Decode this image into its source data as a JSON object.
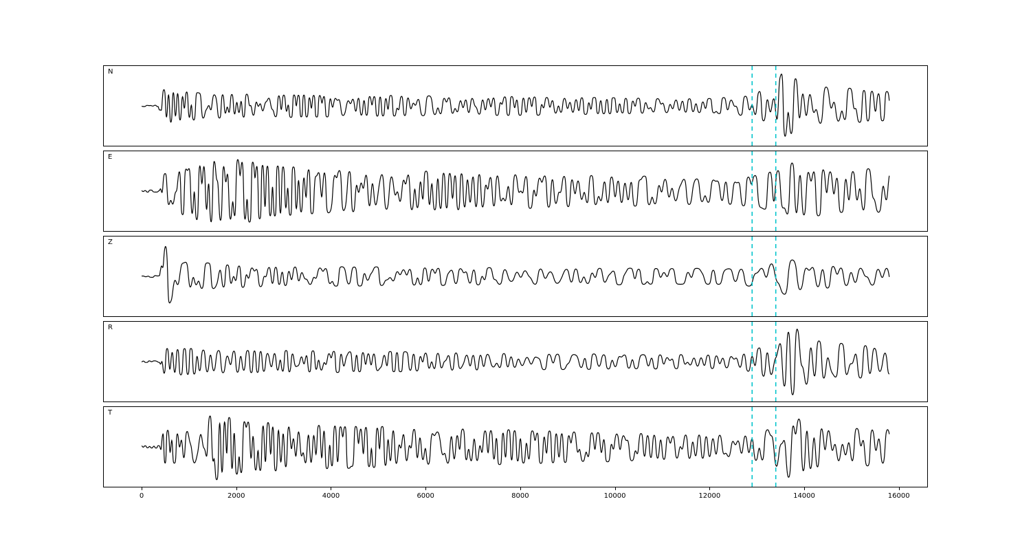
{
  "figure": {
    "background": "#ffffff",
    "panel_border_color": "#000000",
    "trace_color": "#000000",
    "marker_color": "#00c4cc"
  },
  "chart_data": {
    "type": "line",
    "title": "",
    "xlabel": "",
    "ylabel": "",
    "xlim": [
      -800,
      16600
    ],
    "x_start": 0,
    "x_end": 15800,
    "xticks": [
      0,
      2000,
      4000,
      6000,
      8000,
      10000,
      12000,
      14000,
      16000
    ],
    "xtick_labels": [
      "0",
      "2000",
      "4000",
      "6000",
      "8000",
      "10000",
      "12000",
      "14000",
      "16000"
    ],
    "grid": false,
    "legend": false,
    "vlines": [
      {
        "x": 12900,
        "style": "dashed",
        "color": "#00c4cc"
      },
      {
        "x": 13400,
        "style": "dashed",
        "color": "#00c4cc"
      }
    ],
    "panels": [
      {
        "label": "N",
        "seed": 101,
        "gain": 54,
        "envelope": [
          [
            0,
            0.02
          ],
          [
            350,
            0.02
          ],
          [
            430,
            0.45
          ],
          [
            600,
            0.5
          ],
          [
            900,
            0.42
          ],
          [
            1500,
            0.35
          ],
          [
            2500,
            0.32
          ],
          [
            4000,
            0.3
          ],
          [
            6000,
            0.28
          ],
          [
            8000,
            0.26
          ],
          [
            10000,
            0.22
          ],
          [
            12000,
            0.2
          ],
          [
            12800,
            0.28
          ],
          [
            13100,
            0.45
          ],
          [
            13350,
            0.4
          ],
          [
            13550,
            1.0
          ],
          [
            13750,
            0.85
          ],
          [
            14200,
            0.6
          ],
          [
            14800,
            0.5
          ],
          [
            15300,
            0.45
          ],
          [
            15800,
            0.4
          ]
        ]
      },
      {
        "label": "E",
        "seed": 202,
        "gain": 52,
        "envelope": [
          [
            0,
            0.03
          ],
          [
            380,
            0.03
          ],
          [
            450,
            0.5
          ],
          [
            700,
            0.6
          ],
          [
            1000,
            0.75
          ],
          [
            1400,
            1.0
          ],
          [
            1700,
            0.9
          ],
          [
            2100,
            0.95
          ],
          [
            2600,
            0.75
          ],
          [
            3500,
            0.65
          ],
          [
            5000,
            0.6
          ],
          [
            6500,
            0.55
          ],
          [
            8000,
            0.5
          ],
          [
            9500,
            0.45
          ],
          [
            11000,
            0.42
          ],
          [
            12300,
            0.38
          ],
          [
            12900,
            0.45
          ],
          [
            13400,
            0.6
          ],
          [
            13700,
            0.85
          ],
          [
            14100,
            0.75
          ],
          [
            14700,
            0.6
          ],
          [
            15300,
            0.65
          ],
          [
            15800,
            0.6
          ]
        ]
      },
      {
        "label": "Z",
        "seed": 303,
        "gain": 54,
        "envelope": [
          [
            0,
            0.02
          ],
          [
            380,
            0.03
          ],
          [
            470,
            1.0
          ],
          [
            600,
            0.75
          ],
          [
            800,
            0.5
          ],
          [
            1100,
            0.4
          ],
          [
            1800,
            0.32
          ],
          [
            3000,
            0.28
          ],
          [
            5000,
            0.26
          ],
          [
            7000,
            0.24
          ],
          [
            9000,
            0.24
          ],
          [
            11000,
            0.22
          ],
          [
            12500,
            0.22
          ],
          [
            13000,
            0.3
          ],
          [
            13400,
            0.45
          ],
          [
            13650,
            0.55
          ],
          [
            14000,
            0.4
          ],
          [
            14800,
            0.3
          ],
          [
            15500,
            0.28
          ],
          [
            15800,
            0.3
          ]
        ]
      },
      {
        "label": "R",
        "seed": 404,
        "gain": 54,
        "envelope": [
          [
            0,
            0.02
          ],
          [
            380,
            0.03
          ],
          [
            450,
            0.4
          ],
          [
            700,
            0.38
          ],
          [
            1200,
            0.35
          ],
          [
            2000,
            0.32
          ],
          [
            3500,
            0.3
          ],
          [
            5000,
            0.28
          ],
          [
            7000,
            0.25
          ],
          [
            9000,
            0.22
          ],
          [
            11000,
            0.2
          ],
          [
            12400,
            0.2
          ],
          [
            12900,
            0.3
          ],
          [
            13150,
            0.45
          ],
          [
            13400,
            0.5
          ],
          [
            13650,
            0.95
          ],
          [
            13850,
            1.0
          ],
          [
            14200,
            0.6
          ],
          [
            14800,
            0.5
          ],
          [
            15400,
            0.45
          ],
          [
            15800,
            0.35
          ]
        ]
      },
      {
        "label": "T",
        "seed": 505,
        "gain": 52,
        "envelope": [
          [
            0,
            0.03
          ],
          [
            380,
            0.04
          ],
          [
            460,
            0.5
          ],
          [
            800,
            0.45
          ],
          [
            1200,
            0.6
          ],
          [
            1500,
            1.0
          ],
          [
            1800,
            0.85
          ],
          [
            2300,
            0.75
          ],
          [
            3200,
            0.65
          ],
          [
            4500,
            0.6
          ],
          [
            6000,
            0.55
          ],
          [
            7500,
            0.5
          ],
          [
            9000,
            0.45
          ],
          [
            10500,
            0.4
          ],
          [
            12000,
            0.38
          ],
          [
            12800,
            0.4
          ],
          [
            13200,
            0.5
          ],
          [
            13600,
            1.0
          ],
          [
            13900,
            0.85
          ],
          [
            14400,
            0.65
          ],
          [
            15000,
            0.55
          ],
          [
            15800,
            0.55
          ]
        ]
      }
    ]
  }
}
